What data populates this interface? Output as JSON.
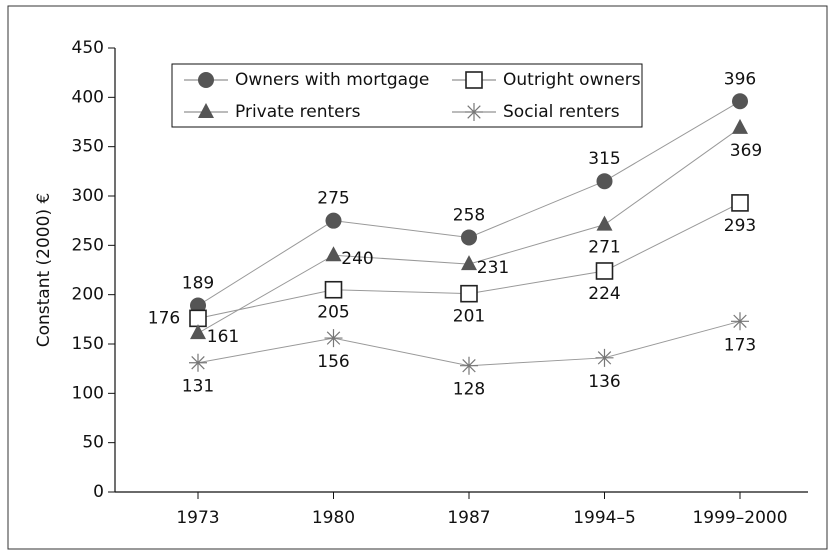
{
  "chart_data": {
    "type": "line",
    "ylabel": "Constant (2000) €",
    "categories": [
      "1973",
      "1980",
      "1987",
      "1994–5",
      "1999–2000"
    ],
    "series": [
      {
        "name": "Owners with mortgage",
        "color": "#555555",
        "marker": "circle",
        "values": [
          189,
          275,
          258,
          315,
          396
        ]
      },
      {
        "name": "Outright owners",
        "color": "#222222",
        "marker": "square",
        "values": [
          176,
          205,
          201,
          224,
          293
        ]
      },
      {
        "name": "Private renters",
        "color": "#555555",
        "marker": "triangle",
        "values": [
          161,
          240,
          231,
          271,
          369
        ]
      },
      {
        "name": "Social renters",
        "color": "#777777",
        "marker": "star",
        "values": [
          131,
          156,
          128,
          136,
          173
        ]
      }
    ],
    "ylim": [
      0,
      450
    ],
    "yticks": [
      0,
      50,
      100,
      150,
      200,
      250,
      300,
      350,
      400,
      450
    ],
    "grid": false,
    "legend": "upper center"
  }
}
